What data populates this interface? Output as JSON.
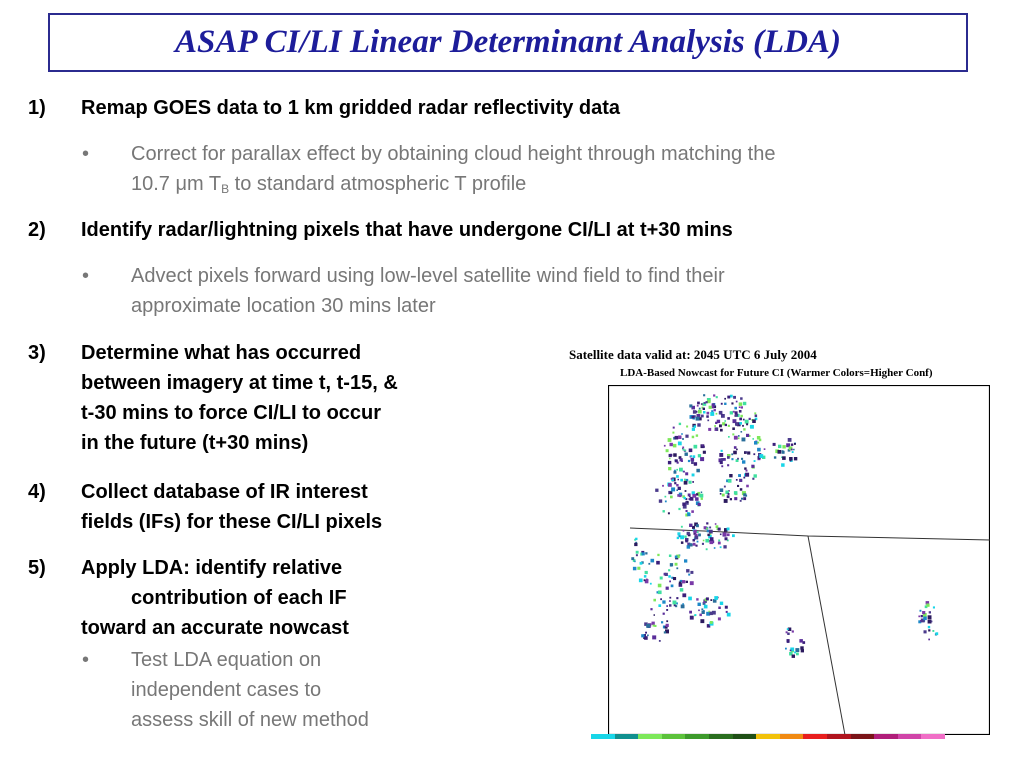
{
  "title": "ASAP CI/LI Linear Determinant Analysis (LDA)",
  "steps": [
    {
      "num": "1)",
      "lines": [
        "Remap GOES data to 1 km gridded radar reflectivity data"
      ]
    },
    {
      "num": "2)",
      "lines": [
        "Identify radar/lightning pixels that have undergone CI/LI at t+30 mins"
      ]
    },
    {
      "num": "3)",
      "lines": [
        "Determine what has occurred",
        "between imagery at time t, t-15, &",
        "t-30 mins to force CI/LI to occur",
        "in the future (t+30 mins)"
      ]
    },
    {
      "num": "4)",
      "lines": [
        "Collect database of IR interest",
        "fields (IFs) for these CI/LI pixels"
      ]
    },
    {
      "num": "5)",
      "lines": [
        "Apply LDA: identify relative",
        "contribution of each IF",
        "toward an accurate nowcast"
      ]
    }
  ],
  "bullets": {
    "b1_line1": "Correct for parallax effect by obtaining cloud height through matching the",
    "b1_line2_a": "10.7 μm T",
    "b1_line2_sub": "B",
    "b1_line2_b": " to standard atmospheric T profile",
    "b2": [
      "Advect pixels forward using low-level satellite wind field to find their",
      "approximate location 30 mins later"
    ],
    "b3": [
      "Test LDA equation on",
      "independent cases to",
      "assess skill of new method"
    ]
  },
  "bullet_symbol": "•",
  "figure": {
    "line1": "Satellite data valid at: 2045 UTC   6 July      2004",
    "line2": "LDA-Based Nowcast for Future CI (Warmer Colors=Higher Conf)"
  },
  "colorbar": [
    "#19d6e8",
    "#10908f",
    "#7de85a",
    "#5cc23b",
    "#3d9a2b",
    "#2a6e1f",
    "#1f4f16",
    "#f2c20a",
    "#f08a12",
    "#e81e1e",
    "#b0141e",
    "#7a1418",
    "#b01e7a",
    "#d044a8",
    "#f06ec6"
  ]
}
